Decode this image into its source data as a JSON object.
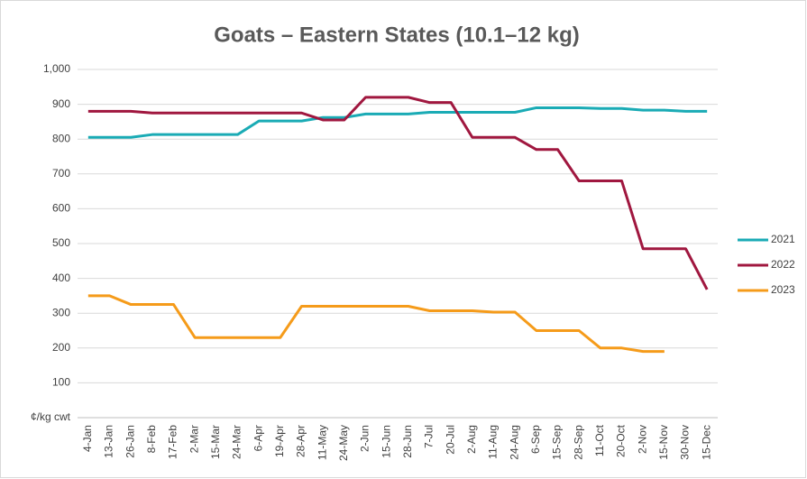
{
  "chart_data": {
    "type": "line",
    "title": "Goats – Eastern States (10.1–12 kg)",
    "categories": [
      "4-Jan",
      "13-Jan",
      "26-Jan",
      "8-Feb",
      "17-Feb",
      "2-Mar",
      "15-Mar",
      "24-Mar",
      "6-Apr",
      "19-Apr",
      "28-Apr",
      "11-May",
      "24-May",
      "2-Jun",
      "15-Jun",
      "28-Jun",
      "7-Jul",
      "20-Jul",
      "2-Aug",
      "11-Aug",
      "24-Aug",
      "6-Sep",
      "15-Sep",
      "28-Sep",
      "11-Oct",
      "20-Oct",
      "2-Nov",
      "15-Nov",
      "30-Nov",
      "15-Dec"
    ],
    "series": [
      {
        "name": "2021",
        "color": "#1aabb5",
        "values": [
          805,
          805,
          805,
          813,
          813,
          813,
          813,
          813,
          852,
          852,
          852,
          862,
          862,
          872,
          872,
          872,
          877,
          877,
          877,
          877,
          877,
          890,
          890,
          890,
          888,
          888,
          883,
          883,
          880,
          880
        ]
      },
      {
        "name": "2022",
        "color": "#a0173f",
        "values": [
          880,
          880,
          880,
          875,
          875,
          875,
          875,
          875,
          875,
          875,
          875,
          855,
          855,
          920,
          920,
          920,
          905,
          905,
          805,
          805,
          805,
          770,
          770,
          680,
          680,
          680,
          485,
          485,
          485,
          368
        ]
      },
      {
        "name": "2023",
        "color": "#f59b1a",
        "values": [
          350,
          350,
          325,
          325,
          325,
          230,
          230,
          230,
          230,
          230,
          320,
          320,
          320,
          320,
          320,
          320,
          307,
          307,
          307,
          303,
          303,
          250,
          250,
          250,
          200,
          200,
          190,
          190,
          null,
          null
        ]
      }
    ],
    "ylim": [
      0,
      1000
    ],
    "yticks": [
      {
        "value": 0,
        "label": "¢/kg cwt"
      },
      100,
      200,
      300,
      400,
      500,
      600,
      700,
      800,
      900,
      {
        "value": 1000,
        "label": "1,000"
      }
    ],
    "grid": true,
    "legend": "right"
  }
}
